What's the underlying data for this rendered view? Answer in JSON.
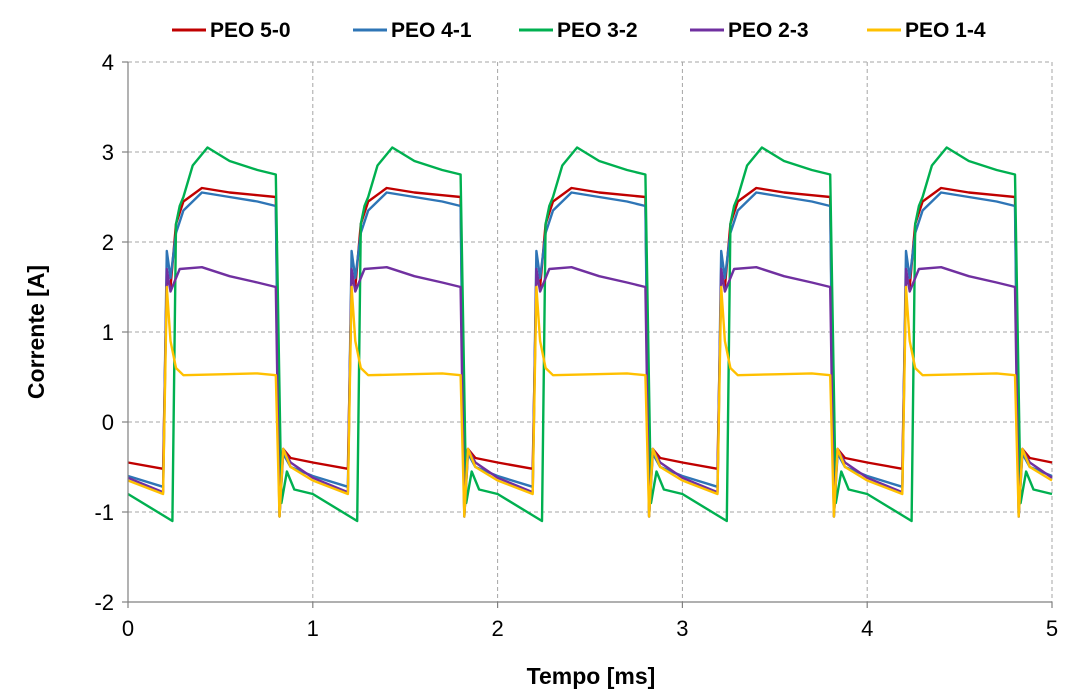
{
  "chart_data": {
    "type": "line",
    "title": "",
    "xlabel": "Tempo [ms]",
    "ylabel": "Corrente [A]",
    "xlim": [
      0,
      5
    ],
    "ylim": [
      -2,
      4
    ],
    "xticks": [
      0,
      1,
      2,
      3,
      4,
      5
    ],
    "yticks": [
      -2,
      -1,
      0,
      1,
      2,
      3,
      4
    ],
    "grid": true,
    "legend_position": "top",
    "period_ms": 1.0,
    "series": [
      {
        "name": "PEO 5-0",
        "color": "#c00000",
        "x": [
          0,
          0.19,
          0.21,
          0.23,
          0.26,
          0.3,
          0.4,
          0.55,
          0.7,
          0.8,
          0.82,
          0.84,
          0.88,
          1.0,
          1.19,
          1.21,
          1.23,
          1.26,
          1.3,
          1.4,
          1.55,
          1.7,
          1.8,
          1.82,
          1.84,
          1.88,
          2.0,
          2.19,
          2.21,
          2.23,
          2.26,
          2.3,
          2.4,
          2.55,
          2.7,
          2.8,
          2.82,
          2.84,
          2.88,
          3.0,
          3.19,
          3.21,
          3.23,
          3.26,
          3.3,
          3.4,
          3.55,
          3.7,
          3.8,
          3.82,
          3.84,
          3.88,
          4.0,
          4.19,
          4.21,
          4.23,
          4.26,
          4.3,
          4.4,
          4.55,
          4.7,
          4.8,
          4.82,
          4.84,
          4.88,
          5.0
        ],
        "y": [
          -0.45,
          -0.52,
          1.6,
          1.5,
          2.2,
          2.45,
          2.6,
          2.55,
          2.52,
          2.5,
          -0.7,
          -0.3,
          -0.4,
          -0.45,
          -0.52,
          1.6,
          1.5,
          2.2,
          2.45,
          2.6,
          2.55,
          2.52,
          2.5,
          -0.7,
          -0.3,
          -0.4,
          -0.45,
          -0.52,
          1.6,
          1.5,
          2.2,
          2.45,
          2.6,
          2.55,
          2.52,
          2.5,
          -0.7,
          -0.3,
          -0.4,
          -0.45,
          -0.52,
          1.6,
          1.5,
          2.2,
          2.45,
          2.6,
          2.55,
          2.52,
          2.5,
          -0.7,
          -0.3,
          -0.4,
          -0.45,
          -0.52,
          1.6,
          1.5,
          2.2,
          2.45,
          2.6,
          2.55,
          2.52,
          2.5,
          -0.7,
          -0.3,
          -0.4,
          -0.45
        ]
      },
      {
        "name": "PEO 4-1",
        "color": "#2e75b6",
        "x": [
          0,
          0.19,
          0.21,
          0.23,
          0.26,
          0.3,
          0.4,
          0.55,
          0.7,
          0.8,
          0.82,
          0.84,
          0.88,
          1.0,
          1.19,
          1.21,
          1.23,
          1.26,
          1.3,
          1.4,
          1.55,
          1.7,
          1.8,
          1.82,
          1.84,
          1.88,
          2.0,
          2.19,
          2.21,
          2.23,
          2.26,
          2.3,
          2.4,
          2.55,
          2.7,
          2.8,
          2.82,
          2.84,
          2.88,
          3.0,
          3.19,
          3.21,
          3.23,
          3.26,
          3.3,
          3.4,
          3.55,
          3.7,
          3.8,
          3.82,
          3.84,
          3.88,
          4.0,
          4.19,
          4.21,
          4.23,
          4.26,
          4.3,
          4.4,
          4.55,
          4.7,
          4.8,
          4.82,
          4.84,
          4.88,
          5.0
        ],
        "y": [
          -0.6,
          -0.72,
          1.9,
          1.6,
          2.1,
          2.35,
          2.55,
          2.5,
          2.45,
          2.4,
          -1.05,
          -0.35,
          -0.5,
          -0.6,
          -0.72,
          1.9,
          1.6,
          2.1,
          2.35,
          2.55,
          2.5,
          2.45,
          2.4,
          -1.05,
          -0.35,
          -0.5,
          -0.6,
          -0.72,
          1.9,
          1.6,
          2.1,
          2.35,
          2.55,
          2.5,
          2.45,
          2.4,
          -1.05,
          -0.35,
          -0.5,
          -0.6,
          -0.72,
          1.9,
          1.6,
          2.1,
          2.35,
          2.55,
          2.5,
          2.45,
          2.4,
          -1.05,
          -0.35,
          -0.5,
          -0.6,
          -0.72,
          1.9,
          1.6,
          2.1,
          2.35,
          2.55,
          2.5,
          2.45,
          2.4,
          -1.05,
          -0.35,
          -0.5,
          -0.6
        ]
      },
      {
        "name": "PEO 3-2",
        "color": "#00b050",
        "x": [
          0,
          0.24,
          0.26,
          0.28,
          0.3,
          0.35,
          0.43,
          0.55,
          0.7,
          0.8,
          0.83,
          0.86,
          0.9,
          1.0,
          1.24,
          1.26,
          1.28,
          1.3,
          1.35,
          1.43,
          1.55,
          1.7,
          1.8,
          1.83,
          1.86,
          1.9,
          2.0,
          2.24,
          2.26,
          2.28,
          2.3,
          2.35,
          2.43,
          2.55,
          2.7,
          2.8,
          2.83,
          2.86,
          2.9,
          3.0,
          3.24,
          3.26,
          3.28,
          3.3,
          3.35,
          3.43,
          3.55,
          3.7,
          3.8,
          3.83,
          3.86,
          3.9,
          4.0,
          4.24,
          4.26,
          4.28,
          4.3,
          4.35,
          4.43,
          4.55,
          4.7,
          4.8,
          4.83,
          4.86,
          4.9,
          5.0
        ],
        "y": [
          -0.8,
          -1.1,
          2.2,
          2.4,
          2.5,
          2.85,
          3.05,
          2.9,
          2.8,
          2.75,
          -0.9,
          -0.55,
          -0.75,
          -0.8,
          -1.1,
          2.2,
          2.4,
          2.5,
          2.85,
          3.05,
          2.9,
          2.8,
          2.75,
          -0.9,
          -0.55,
          -0.75,
          -0.8,
          -1.1,
          2.2,
          2.4,
          2.5,
          2.85,
          3.05,
          2.9,
          2.8,
          2.75,
          -0.9,
          -0.55,
          -0.75,
          -0.8,
          -1.1,
          2.2,
          2.4,
          2.5,
          2.85,
          3.05,
          2.9,
          2.8,
          2.75,
          -0.9,
          -0.55,
          -0.75,
          -0.8,
          -1.1,
          2.2,
          2.4,
          2.5,
          2.85,
          3.05,
          2.9,
          2.8,
          2.75,
          -0.9,
          -0.55,
          -0.75,
          -0.8
        ]
      },
      {
        "name": "PEO 2-3",
        "color": "#7030a0",
        "x": [
          0,
          0.19,
          0.21,
          0.23,
          0.28,
          0.4,
          0.55,
          0.7,
          0.8,
          0.82,
          0.84,
          0.88,
          1.0,
          1.19,
          1.21,
          1.23,
          1.28,
          1.4,
          1.55,
          1.7,
          1.8,
          1.82,
          1.84,
          1.88,
          2.0,
          2.19,
          2.21,
          2.23,
          2.28,
          2.4,
          2.55,
          2.7,
          2.8,
          2.82,
          2.84,
          2.88,
          3.0,
          3.19,
          3.21,
          3.23,
          3.28,
          3.4,
          3.55,
          3.7,
          3.8,
          3.82,
          3.84,
          3.88,
          4.0,
          4.19,
          4.21,
          4.23,
          4.28,
          4.4,
          4.55,
          4.7,
          4.8,
          4.82,
          4.84,
          4.88,
          5.0
        ],
        "y": [
          -0.62,
          -0.78,
          1.7,
          1.45,
          1.7,
          1.72,
          1.62,
          1.55,
          1.5,
          -1.05,
          -0.3,
          -0.45,
          -0.62,
          -0.78,
          1.7,
          1.45,
          1.7,
          1.72,
          1.62,
          1.55,
          1.5,
          -1.05,
          -0.3,
          -0.45,
          -0.62,
          -0.78,
          1.7,
          1.45,
          1.7,
          1.72,
          1.62,
          1.55,
          1.5,
          -1.05,
          -0.3,
          -0.45,
          -0.62,
          -0.78,
          1.7,
          1.45,
          1.7,
          1.72,
          1.62,
          1.55,
          1.5,
          -1.05,
          -0.3,
          -0.45,
          -0.62,
          -0.78,
          1.7,
          1.45,
          1.7,
          1.72,
          1.62,
          1.55,
          1.5,
          -1.05,
          -0.3,
          -0.45,
          -0.62
        ]
      },
      {
        "name": "PEO 1-4",
        "color": "#ffc000",
        "x": [
          0,
          0.19,
          0.21,
          0.23,
          0.26,
          0.3,
          0.5,
          0.7,
          0.8,
          0.82,
          0.84,
          0.88,
          1.0,
          1.19,
          1.21,
          1.23,
          1.26,
          1.3,
          1.5,
          1.7,
          1.8,
          1.82,
          1.84,
          1.88,
          2.0,
          2.19,
          2.21,
          2.23,
          2.26,
          2.3,
          2.5,
          2.7,
          2.8,
          2.82,
          2.84,
          2.88,
          3.0,
          3.19,
          3.21,
          3.23,
          3.26,
          3.3,
          3.5,
          3.7,
          3.8,
          3.82,
          3.84,
          3.88,
          4.0,
          4.19,
          4.21,
          4.23,
          4.26,
          4.3,
          4.5,
          4.7,
          4.8,
          4.82,
          4.84,
          4.88,
          5.0
        ],
        "y": [
          -0.65,
          -0.8,
          1.5,
          0.9,
          0.6,
          0.52,
          0.53,
          0.54,
          0.52,
          -1.05,
          -0.3,
          -0.5,
          -0.65,
          -0.8,
          1.5,
          0.9,
          0.6,
          0.52,
          0.53,
          0.54,
          0.52,
          -1.05,
          -0.3,
          -0.5,
          -0.65,
          -0.8,
          1.5,
          0.9,
          0.6,
          0.52,
          0.53,
          0.54,
          0.52,
          -1.05,
          -0.3,
          -0.5,
          -0.65,
          -0.8,
          1.5,
          0.9,
          0.6,
          0.52,
          0.53,
          0.54,
          0.52,
          -1.05,
          -0.3,
          -0.5,
          -0.65,
          -0.8,
          1.5,
          0.9,
          0.6,
          0.52,
          0.53,
          0.54,
          0.52,
          -1.05,
          -0.3,
          -0.5,
          -0.65
        ]
      }
    ]
  }
}
